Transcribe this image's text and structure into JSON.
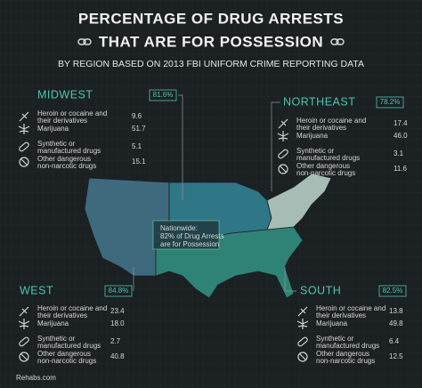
{
  "header": {
    "title_lines": [
      "PERCENTAGE OF DRUG ARRESTS",
      "THAT ARE FOR POSSESSION"
    ],
    "subtitle": "BY REGION BASED ON 2013 FBI UNIFORM CRIME REPORTING DATA"
  },
  "regions": [
    {
      "name": "MIDWEST",
      "percent": "81.6%",
      "items": [
        {
          "label": [
            "Heroin or cocaine and",
            "their derivatives"
          ],
          "value": "9.6"
        },
        {
          "label": [
            "Marijuana"
          ],
          "value": "51.7"
        },
        {
          "label": [
            "Synthetic or",
            "manufactured drugs"
          ],
          "value": "5.1"
        },
        {
          "label": [
            "Other dangerous",
            "non-narcotic drugs"
          ],
          "value": "15.1"
        }
      ]
    },
    {
      "name": "NORTHEAST",
      "percent": "78.2%",
      "items": [
        {
          "label": [
            "Heroin or cocaine and",
            "their derivatives"
          ],
          "value": "17.4"
        },
        {
          "label": [
            "Marijuana"
          ],
          "value": "46.0"
        },
        {
          "label": [
            "Synthetic or",
            "manufactured drugs"
          ],
          "value": "3.1"
        },
        {
          "label": [
            "Other dangerous",
            "non-narcotic drugs"
          ],
          "value": "11.6"
        }
      ]
    },
    {
      "name": "WEST",
      "percent": "84.8%",
      "items": [
        {
          "label": [
            "Heroin or cocaine and",
            "their derivatives"
          ],
          "value": "23.4"
        },
        {
          "label": [
            "Marijuana"
          ],
          "value": "18.0"
        },
        {
          "label": [
            "Synthetic or",
            "manufactured drugs"
          ],
          "value": "2.7"
        },
        {
          "label": [
            "Other dangerous",
            "non-narcotic drugs"
          ],
          "value": "40.8"
        }
      ]
    },
    {
      "name": "SOUTH",
      "percent": "82.5%",
      "items": [
        {
          "label": [
            "Heroin or cocaine and",
            "their derivatives"
          ],
          "value": "13.8"
        },
        {
          "label": [
            "Marijuana"
          ],
          "value": "49.8"
        },
        {
          "label": [
            "Synthetic or",
            "manufactured drugs"
          ],
          "value": "6.4"
        },
        {
          "label": [
            "Other dangerous",
            "non-narcotic drugs"
          ],
          "value": "12.5"
        }
      ]
    }
  ],
  "nationwide": [
    "Nationwide:",
    "82% of Drug Arrests",
    "are for Possession"
  ],
  "footer": "Rehabs.com"
}
